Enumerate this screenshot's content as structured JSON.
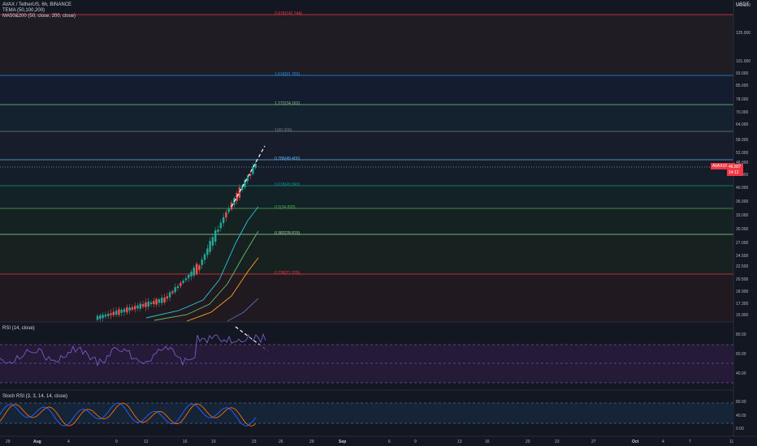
{
  "header": {
    "symbol_line": "AVAX / TetherUS, 6h, BINANCE",
    "indicators": [
      "TEMA (50,100,200)",
      "MA50&200 (50, close, 200, close)"
    ]
  },
  "price_axis": {
    "unit": "USDT",
    "ticks": [
      "140.000",
      "125.000",
      "101.000",
      "93.000",
      "85.000",
      "78.000",
      "70.000",
      "64.000",
      "58.000",
      "52.000",
      "48.000",
      "44.000",
      "40.000",
      "36.000",
      "33.000",
      "30.000",
      "27.000",
      "24.500",
      "22.500",
      "20.500",
      "18.900",
      "17.300",
      "15.900"
    ]
  },
  "last_price": {
    "symbol": "AVAXUSDT",
    "value": "46.807",
    "countdown": "14:12",
    "color": "#f23645"
  },
  "fib_levels": [
    {
      "label": "2.618(142.744)",
      "color": "#f23645"
    },
    {
      "label": "1.618(91.792)",
      "color": "#2196f3"
    },
    {
      "label": "1.272(74.162)",
      "color": "#81c784"
    },
    {
      "label": "1(60.306)",
      "color": "#787b86"
    },
    {
      "label": "0.786(49.400)",
      "color": "#64b5f6"
    },
    {
      "label": "0.618(40.849)",
      "color": "#089981"
    },
    {
      "label": "0.5(34.828)",
      "color": "#4caf50"
    },
    {
      "label": "0.382(28.815)",
      "color": "#a5d6a7"
    },
    {
      "label": "0.236(21.376)",
      "color": "#f23645"
    }
  ],
  "rsi": {
    "label": "RSI (14, close)",
    "ticks": [
      "80.00",
      "60.00",
      "40.00"
    ],
    "line_color": "#7e57c2"
  },
  "stoch_rsi": {
    "label": "Stoch RSI (3, 3, 14, 14, close)",
    "ticks": [
      "80.00",
      "40.00",
      "0.00"
    ],
    "k_color": "#2962ff",
    "d_color": "#ff6d00"
  },
  "time_axis": {
    "ticks": [
      "29",
      "Aug",
      "4",
      "9",
      "12",
      "16",
      "19",
      "23",
      "26",
      "29",
      "Sep",
      "6",
      "9",
      "13",
      "16",
      "20",
      "23",
      "27",
      "Oct",
      "4",
      "7",
      "11"
    ]
  },
  "colors": {
    "up": "#26a69a",
    "down": "#ef5350",
    "background": "#131722"
  }
}
